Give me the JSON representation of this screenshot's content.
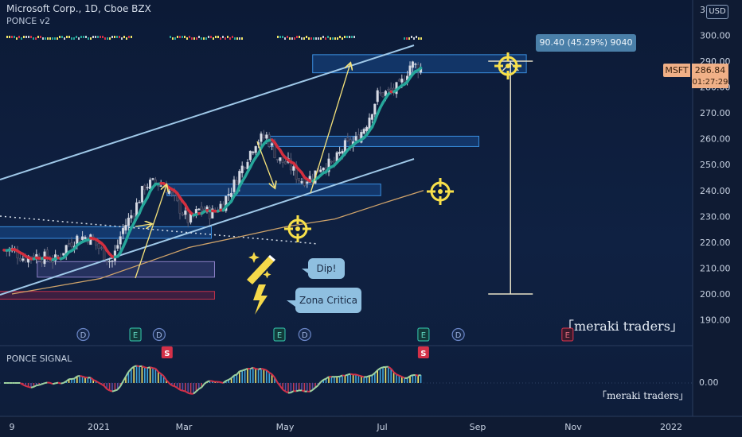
{
  "header": {
    "symbol_line": "Microsoft Corp., 1D, Cboe BZX",
    "indicator_name": "PONCE v2",
    "currency": "USD"
  },
  "price_tag": {
    "symbol": "MSFT",
    "price": "286.84",
    "countdown": "01:27:29"
  },
  "measure_label": "90.40 (45.29%) 9040",
  "callouts": {
    "dip": "Dip!",
    "critical_zone": "Zona Critica"
  },
  "watermark": "「meraki traders」",
  "sub_pane": {
    "title": "PONCE SIGNAL",
    "zero_label": "0.00",
    "watermark": "「meraki traders」"
  },
  "markers": [
    {
      "type": "D",
      "date": "2020-12-24"
    },
    {
      "type": "E",
      "date": "2021-01-26"
    },
    {
      "type": "D",
      "date": "2021-02-10"
    },
    {
      "type": "E",
      "date": "2021-04-27"
    },
    {
      "type": "D",
      "date": "2021-05-13"
    },
    {
      "type": "E",
      "date": "2021-07-27"
    },
    {
      "type": "D",
      "date": "2021-08-18"
    },
    {
      "type": "E",
      "date": "2021-10-26"
    }
  ],
  "signal_tags": [
    {
      "label": "S",
      "date": "2021-02-15"
    },
    {
      "label": "S",
      "date": "2021-07-27"
    }
  ],
  "colors": {
    "background": "#0f1b33",
    "up": "#d8dce6",
    "down": "#2d2f46",
    "ribbon_up": "#26a69a",
    "ribbon_down": "#d32f3f",
    "channel": "#9fc8e8",
    "zone": "#1e63b3",
    "arrow": "#f5e27a",
    "ma": "#cfa36a",
    "target": "#f8e04a"
  },
  "chart_data": {
    "type": "line",
    "title": "Microsoft Corp., 1D, Cboe BZX",
    "xlabel": "",
    "ylabel": "",
    "x_ticks": [
      "9",
      "2021",
      "Mar",
      "May",
      "Jul",
      "Sep",
      "Nov",
      "2022"
    ],
    "y_ticks": [
      190,
      200,
      210,
      220,
      230,
      240,
      250,
      260,
      270,
      280,
      290,
      300
    ],
    "ylim": [
      186,
      311
    ],
    "grid": false,
    "series": [
      {
        "name": "MSFT",
        "points": [
          [
            "2020-11-09",
            217
          ],
          [
            "2020-11-16",
            214
          ],
          [
            "2020-11-23",
            215
          ],
          [
            "2020-11-30",
            214
          ],
          [
            "2020-12-07",
            213
          ],
          [
            "2020-12-14",
            219
          ],
          [
            "2020-12-21",
            222
          ],
          [
            "2020-12-28",
            222
          ],
          [
            "2021-01-04",
            217
          ],
          [
            "2021-01-11",
            212
          ],
          [
            "2021-01-18",
            225
          ],
          [
            "2021-01-25",
            232
          ],
          [
            "2021-02-01",
            242
          ],
          [
            "2021-02-08",
            243
          ],
          [
            "2021-02-15",
            241
          ],
          [
            "2021-02-22",
            234
          ],
          [
            "2021-03-01",
            228
          ],
          [
            "2021-03-08",
            233
          ],
          [
            "2021-03-15",
            231
          ],
          [
            "2021-03-22",
            235
          ],
          [
            "2021-03-29",
            242
          ],
          [
            "2021-04-05",
            251
          ],
          [
            "2021-04-12",
            259
          ],
          [
            "2021-04-19",
            261
          ],
          [
            "2021-04-26",
            252
          ],
          [
            "2021-05-03",
            250
          ],
          [
            "2021-05-10",
            244
          ],
          [
            "2021-05-17",
            245
          ],
          [
            "2021-05-24",
            250
          ],
          [
            "2021-05-31",
            250
          ],
          [
            "2021-06-07",
            257
          ],
          [
            "2021-06-14",
            259
          ],
          [
            "2021-06-21",
            266
          ],
          [
            "2021-06-28",
            277
          ],
          [
            "2021-07-05",
            278
          ],
          [
            "2021-07-12",
            280
          ],
          [
            "2021-07-19",
            289
          ],
          [
            "2021-07-26",
            286.84
          ]
        ]
      },
      {
        "name": "",
        "points": [
          [
            "2020-11-09",
            200
          ],
          [
            "2020-12-07",
            203
          ],
          [
            "2021-01-04",
            206
          ],
          [
            "2021-02-01",
            212
          ],
          [
            "2021-03-01",
            218
          ],
          [
            "2021-04-01",
            222
          ],
          [
            "2021-05-01",
            226
          ],
          [
            "2021-06-01",
            229
          ],
          [
            "2021-07-01",
            235
          ],
          [
            "2021-07-27",
            240
          ]
        ]
      }
    ],
    "zones": [
      {
        "from": "2021-05-18",
        "to": "2021-09-30",
        "low": 285.5,
        "high": 292.5
      },
      {
        "from": "2021-04-20",
        "to": "2021-08-31",
        "low": 257,
        "high": 261
      },
      {
        "from": "2021-02-15",
        "to": "2021-06-30",
        "low": 238,
        "high": 242.5
      },
      {
        "from": "2020-11-01",
        "to": "2021-03-15",
        "low": 221.5,
        "high": 226
      },
      {
        "from": "2020-11-25",
        "to": "2021-03-17",
        "low": 206.5,
        "high": 212.5
      },
      {
        "from": "2020-11-01",
        "to": "2021-03-17",
        "low": 198,
        "high": 201
      }
    ],
    "measure": {
      "date": "2021-09-20",
      "from": 200,
      "to": 290
    }
  }
}
